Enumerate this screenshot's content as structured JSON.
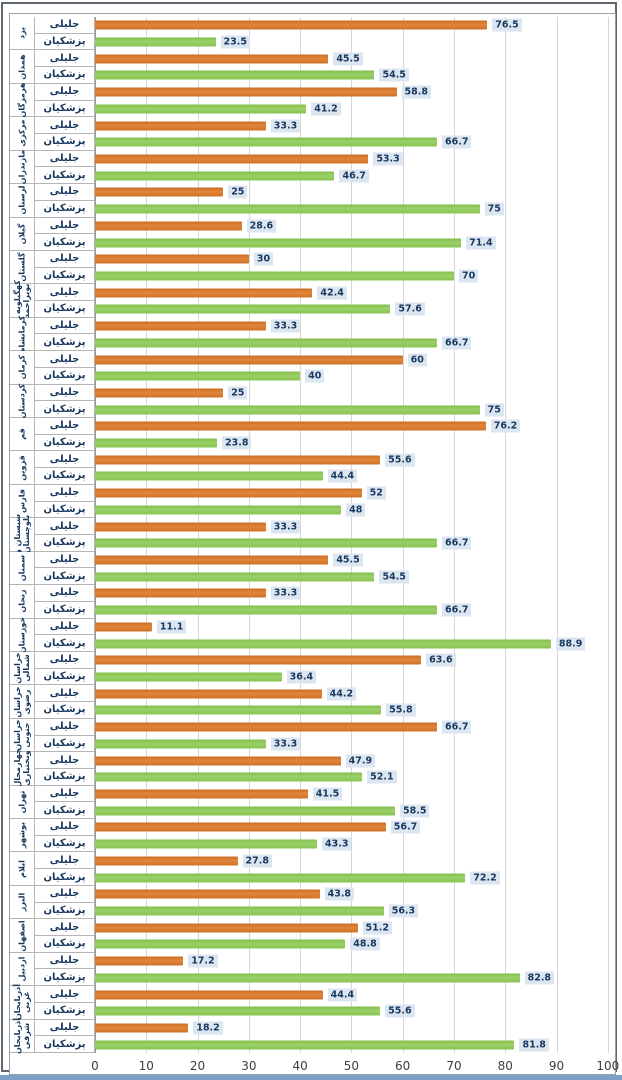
{
  "chart_data": {
    "type": "bar",
    "orientation": "horizontal",
    "unit": "percent",
    "grid": true,
    "xlim": [
      0,
      100
    ],
    "x_ticks": [
      0,
      10,
      20,
      30,
      40,
      50,
      60,
      70,
      80,
      90,
      100
    ],
    "series_labels": {
      "jalili": "جلیلی",
      "pezeshkian": "پزشکیان"
    },
    "provinces": [
      {
        "name": "یزد",
        "jalili": 76.5,
        "pezeshkian": 23.5
      },
      {
        "name": "همدان",
        "jalili": 45.5,
        "pezeshkian": 54.5
      },
      {
        "name": "هرمزگان",
        "jalili": 58.8,
        "pezeshkian": 41.2
      },
      {
        "name": "مرکزی",
        "jalili": 33.3,
        "pezeshkian": 66.7
      },
      {
        "name": "مازندران",
        "jalili": 53.3,
        "pezeshkian": 46.7
      },
      {
        "name": "لرستان",
        "jalili": 25,
        "pezeshkian": 75
      },
      {
        "name": "گیلان",
        "jalili": 28.6,
        "pezeshkian": 71.4
      },
      {
        "name": "گلستان",
        "jalili": 30,
        "pezeshkian": 70
      },
      {
        "name": "کهگیلویه و بویراحمد",
        "jalili": 42.4,
        "pezeshkian": 57.6
      },
      {
        "name": "کرمانشاه",
        "jalili": 33.3,
        "pezeshkian": 66.7
      },
      {
        "name": "کرمان",
        "jalili": 60,
        "pezeshkian": 40
      },
      {
        "name": "کردستان",
        "jalili": 25,
        "pezeshkian": 75
      },
      {
        "name": "قم",
        "jalili": 76.2,
        "pezeshkian": 23.8
      },
      {
        "name": "قزوین",
        "jalili": 55.6,
        "pezeshkian": 44.4
      },
      {
        "name": "فارس",
        "jalili": 52,
        "pezeshkian": 48
      },
      {
        "name": "سیستان و بلوچستان",
        "jalili": 33.3,
        "pezeshkian": 66.7
      },
      {
        "name": "سمنان",
        "jalili": 45.5,
        "pezeshkian": 54.5
      },
      {
        "name": "زنجان",
        "jalili": 33.3,
        "pezeshkian": 66.7
      },
      {
        "name": "خوزستان",
        "jalili": 11.1,
        "pezeshkian": 88.9
      },
      {
        "name": "خراسان شمالی",
        "jalili": 63.6,
        "pezeshkian": 36.4
      },
      {
        "name": "خراسان رضوی",
        "jalili": 44.2,
        "pezeshkian": 55.8
      },
      {
        "name": "خراسان جنوبی",
        "jalili": 66.7,
        "pezeshkian": 33.3
      },
      {
        "name": "چهارمحال وبختیاری",
        "jalili": 47.9,
        "pezeshkian": 52.1
      },
      {
        "name": "تهران",
        "jalili": 41.5,
        "pezeshkian": 58.5
      },
      {
        "name": "بوشهر",
        "jalili": 56.7,
        "pezeshkian": 43.3
      },
      {
        "name": "ایلام",
        "jalili": 27.8,
        "pezeshkian": 72.2
      },
      {
        "name": "البرز",
        "jalili": 43.8,
        "pezeshkian": 56.3
      },
      {
        "name": "اصفهان",
        "jalili": 51.2,
        "pezeshkian": 48.8
      },
      {
        "name": "اردبیل",
        "jalili": 17.2,
        "pezeshkian": 82.8
      },
      {
        "name": "آذربایجان غربی",
        "jalili": 44.4,
        "pezeshkian": 55.6
      },
      {
        "name": "آذربایجان شرقی",
        "jalili": 18.2,
        "pezeshkian": 81.8
      }
    ]
  },
  "colors": {
    "jalili_bar": "#D9772E",
    "pezeshkian_bar": "#8FC75A",
    "value_label_bg": "#DCE6F1",
    "value_label_text": "#17375E",
    "gridline": "#D6D6D6",
    "cell_border": "#B5B5B5",
    "axis_text": "#3F3F3F"
  }
}
